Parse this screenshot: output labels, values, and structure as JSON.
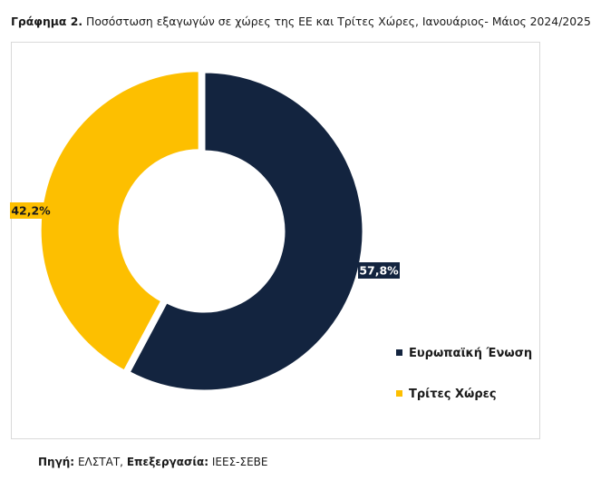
{
  "figure": {
    "label": "Γράφημα 2.",
    "title": "Ποσόστωση εξαγωγών σε χώρες της ΕΕ και Τρίτες Χώρες, Ιανουάριος- Μάιος 2024/2025"
  },
  "source": {
    "source_label": "Πηγή:",
    "source_value": "ΕΛΣΤΑΤ,",
    "processing_label": "Επεξεργασία:",
    "processing_value": "ΙΕΕΣ-ΣΕΒΕ"
  },
  "chart_data": {
    "type": "pie",
    "style": "donut",
    "categories": [
      "Ευρωπαϊκή Ένωση",
      "Τρίτες Χώρες"
    ],
    "values": [
      57.8,
      42.2
    ],
    "data_labels": [
      "57,8%",
      "42,2%"
    ],
    "colors": [
      "#13243f",
      "#fdbf00"
    ],
    "legend_placement": "bottom-right"
  }
}
